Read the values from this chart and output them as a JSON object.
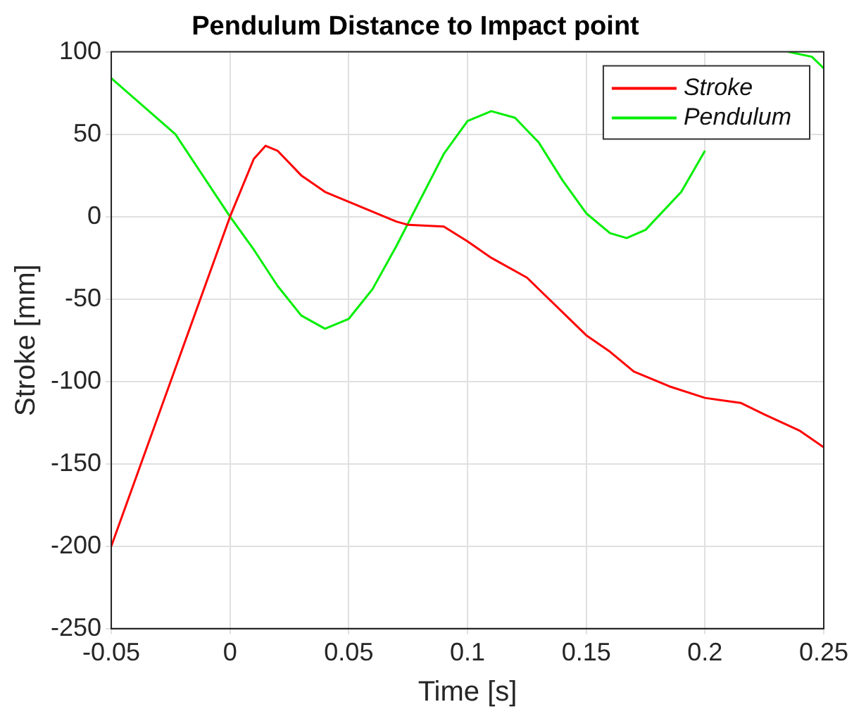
{
  "chart_data": {
    "type": "line",
    "title": "Pendulum Distance to Impact point",
    "xlabel": "Time [s]",
    "ylabel": "Stroke [mm]",
    "xlim": [
      -0.05,
      0.25
    ],
    "xticks": [
      {
        "value": -0.05,
        "label": "-0.05"
      },
      {
        "value": 0,
        "label": "0"
      },
      {
        "value": 0.05,
        "label": "0.05"
      },
      {
        "value": 0.1,
        "label": "0.1"
      },
      {
        "value": 0.15,
        "label": "0.15"
      },
      {
        "value": 0.2,
        "label": "0.2"
      },
      {
        "value": 0.25,
        "label": "0.25"
      }
    ],
    "ylim": [
      -250,
      100
    ],
    "yticks": [
      -250,
      -200,
      -150,
      -100,
      -50,
      0,
      50,
      100
    ],
    "grid": true,
    "legend": "top right",
    "series": [
      {
        "name": "Stroke",
        "color": "#ff0000",
        "x": [
          -0.05,
          0,
          0.01,
          0.015,
          0.02,
          0.03,
          0.04,
          0.05,
          0.06,
          0.07,
          0.075,
          0.09,
          0.1,
          0.11,
          0.125,
          0.14,
          0.15,
          0.16,
          0.17,
          0.185,
          0.2,
          0.215,
          0.225,
          0.24,
          0.25
        ],
        "values": [
          -200,
          0,
          35,
          43,
          40,
          25,
          15,
          9,
          3,
          -3,
          -5,
          -6,
          -15,
          -25,
          -37,
          -58,
          -72,
          -82,
          -94,
          -103,
          -110,
          -113,
          -120,
          -130,
          -140
        ]
      },
      {
        "name": "Pendulum",
        "color": "#00ee00",
        "x": [
          -0.05,
          -0.023,
          0,
          0.01,
          0.02,
          0.03,
          0.04,
          0.05,
          0.06,
          0.07,
          0.08,
          0.09,
          0.1,
          0.11,
          0.12,
          0.13,
          0.14,
          0.15,
          0.16,
          0.167,
          0.175,
          0.19,
          0.2,
          0.21,
          0.22,
          0.235,
          0.245,
          0.25
        ],
        "values": [
          84,
          50,
          0,
          -20,
          -42,
          -60,
          -68,
          -62,
          -44,
          -18,
          10,
          38,
          58,
          64,
          60,
          45,
          22,
          2,
          -10,
          -13,
          -8,
          15,
          40,
          null,
          null,
          100,
          97,
          90
        ]
      }
    ]
  }
}
